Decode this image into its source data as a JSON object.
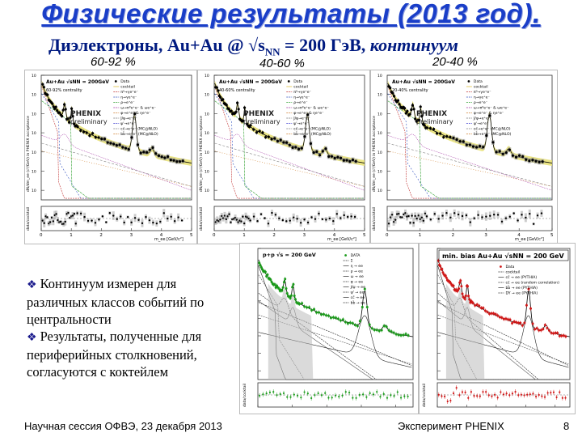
{
  "slide": {
    "title": "Физические результаты (2013 год).",
    "subtitle_pre": "Диэлектроны, Au+Au @ √s",
    "subtitle_sub": "NN",
    "subtitle_mid": " = 200 ГэВ, ",
    "subtitle_em": "континуум",
    "centralities": [
      "60-92 %",
      "40-60 %",
      "20-40 %"
    ]
  },
  "panels": [
    {
      "header": "Au+Au √sNN = 200GeV",
      "centrality": "60-92% centrality",
      "experiment": "PHENIX",
      "status": "preliminary",
      "legend": [
        "Data",
        "cocktail",
        "π⁰→γe⁺e⁻",
        "η→γe⁺e⁻",
        "ρ→e⁺e⁻",
        "ω→π⁰e⁺e⁻ & ωe⁺e⁻",
        "φ→e⁺e⁻ & ηe⁺e⁻",
        "J/ψ→e⁺e⁻",
        "ψ'→e⁺e⁻",
        "cc̄→e⁺e⁻ (MC@NLO)",
        "bb̄→e⁺e⁻ (MC@NLO)"
      ],
      "ylabel": "dN/dm_ee (c²/GeV) in PHENIX acceptance",
      "ratio_label": "data/cocktail",
      "xlabel": "m_ee [GeV/c²]"
    },
    {
      "header": "Au+Au √sNN = 200GeV",
      "centrality": "40-60% centrality",
      "experiment": "PHENIX",
      "status": "preliminary",
      "legend": [
        "Data",
        "cocktail",
        "π⁰→γe⁺e⁻",
        "η→γe⁺e⁻",
        "ρ→e⁺e⁻",
        "ω→π⁰e⁺e⁻ & ωe⁺e⁻",
        "φ→e⁺e⁻ & ηe⁺e⁻",
        "J/ψ→e⁺e⁻",
        "ψ'→e⁺e⁻",
        "cc̄→e⁺e⁻ (MC@NLO)",
        "bb̄→e⁺e⁻ (MC@NLO)"
      ],
      "ylabel": "dN/dm_ee (c²/GeV) in PHENIX acceptance",
      "ratio_label": "data/cocktail",
      "xlabel": "m_ee [GeV/c²]"
    },
    {
      "header": "Au+Au √sNN = 200GeV",
      "centrality": "20-40% centrality",
      "experiment": "PHENIX",
      "status": "preliminary",
      "legend": [
        "Data",
        "cocktail",
        "π⁰→γe⁺e⁻",
        "η→γe⁺e⁻",
        "ρ→e⁺e⁻",
        "ω→π⁰e⁺e⁻ & ωe⁺e⁻",
        "φ→e⁺e⁻ & ηe⁺e⁻",
        "J/ψ→e⁺e⁻",
        "ψ'→e⁺e⁻",
        "cc̄→e⁺e⁻ (MC@NLO)",
        "bb̄→e⁺e⁻ (MC@NLO)"
      ],
      "ylabel": "dN/dm_ee (c²/GeV) in PHENIX acceptance",
      "ratio_label": "data/cocktail",
      "xlabel": "m_ee [GeV/c²]"
    }
  ],
  "pp_panel": {
    "header": "p+p √s = 200 GeV",
    "legend": [
      "DATA",
      "Σ",
      "η → ee",
      "ρ → ee",
      "ω → ee",
      "φ → ee",
      "J/ψ → ee",
      "ψ' → ee",
      "cc̄ → ee",
      "bb̄ → ee"
    ],
    "ratio_label": "data/cocktail"
  },
  "minbias_panel": {
    "header": "min. bias Au+Au √sNN = 200 GeV",
    "legend": [
      "Data",
      "cocktail",
      "cc̄ → ee (PYTHIA)",
      "cc̄ → ee (random correlation)",
      "bb̄ → ee (PYTHIA)",
      "DY → ee (PYTHIA)"
    ],
    "ratio_label": "data/cocktail"
  },
  "bullets": [
    "Континуум измерен для различных классов событий по центральности",
    "Результаты, полученные для периферийных столкновений, согласуются с коктейлем"
  ],
  "footer": {
    "left": "Научная сессия ОФВЭ,  23 декабря 2013",
    "center": "Эксперимент PHENIX",
    "page": "8"
  },
  "colors": {
    "title": "#1a3ec8",
    "subtitle": "#001a80",
    "pp_data": "#1a9a1a",
    "minbias_data": "#d01818",
    "cocktail_band": "#e8e070"
  }
}
